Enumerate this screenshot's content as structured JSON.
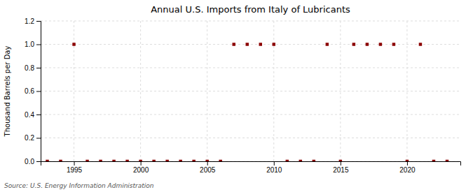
{
  "chart_data": {
    "type": "scatter",
    "title": "Annual U.S. Imports from Italy of Lubricants",
    "ylabel": "Thousand Barrels per Day",
    "source": "Source: U.S. Energy Information Administration",
    "x": [
      1993,
      1994,
      1995,
      1996,
      1997,
      1998,
      1999,
      2000,
      2001,
      2002,
      2003,
      2004,
      2005,
      2006,
      2007,
      2008,
      2009,
      2010,
      2011,
      2012,
      2013,
      2014,
      2015,
      2016,
      2017,
      2018,
      2019,
      2020,
      2021,
      2022,
      2023
    ],
    "values": [
      0,
      0,
      1,
      0,
      0,
      0,
      0,
      0,
      0,
      0,
      0,
      0,
      0,
      0,
      1,
      1,
      1,
      1,
      0,
      0,
      0,
      1,
      0,
      1,
      1,
      1,
      1,
      0,
      1,
      0,
      0
    ],
    "color": "#8b0000",
    "marker": "square",
    "xlim": [
      1992.5,
      2024
    ],
    "ylim": [
      0,
      1.2
    ],
    "xticks": [
      1995,
      2000,
      2005,
      2010,
      2015,
      2020
    ],
    "yticks": [
      {
        "value": 0.0,
        "label": "0.0"
      },
      0.2,
      0.4,
      0.6,
      0.8,
      {
        "value": 1.0,
        "label": "1.0"
      },
      1.2
    ],
    "grid": true
  }
}
